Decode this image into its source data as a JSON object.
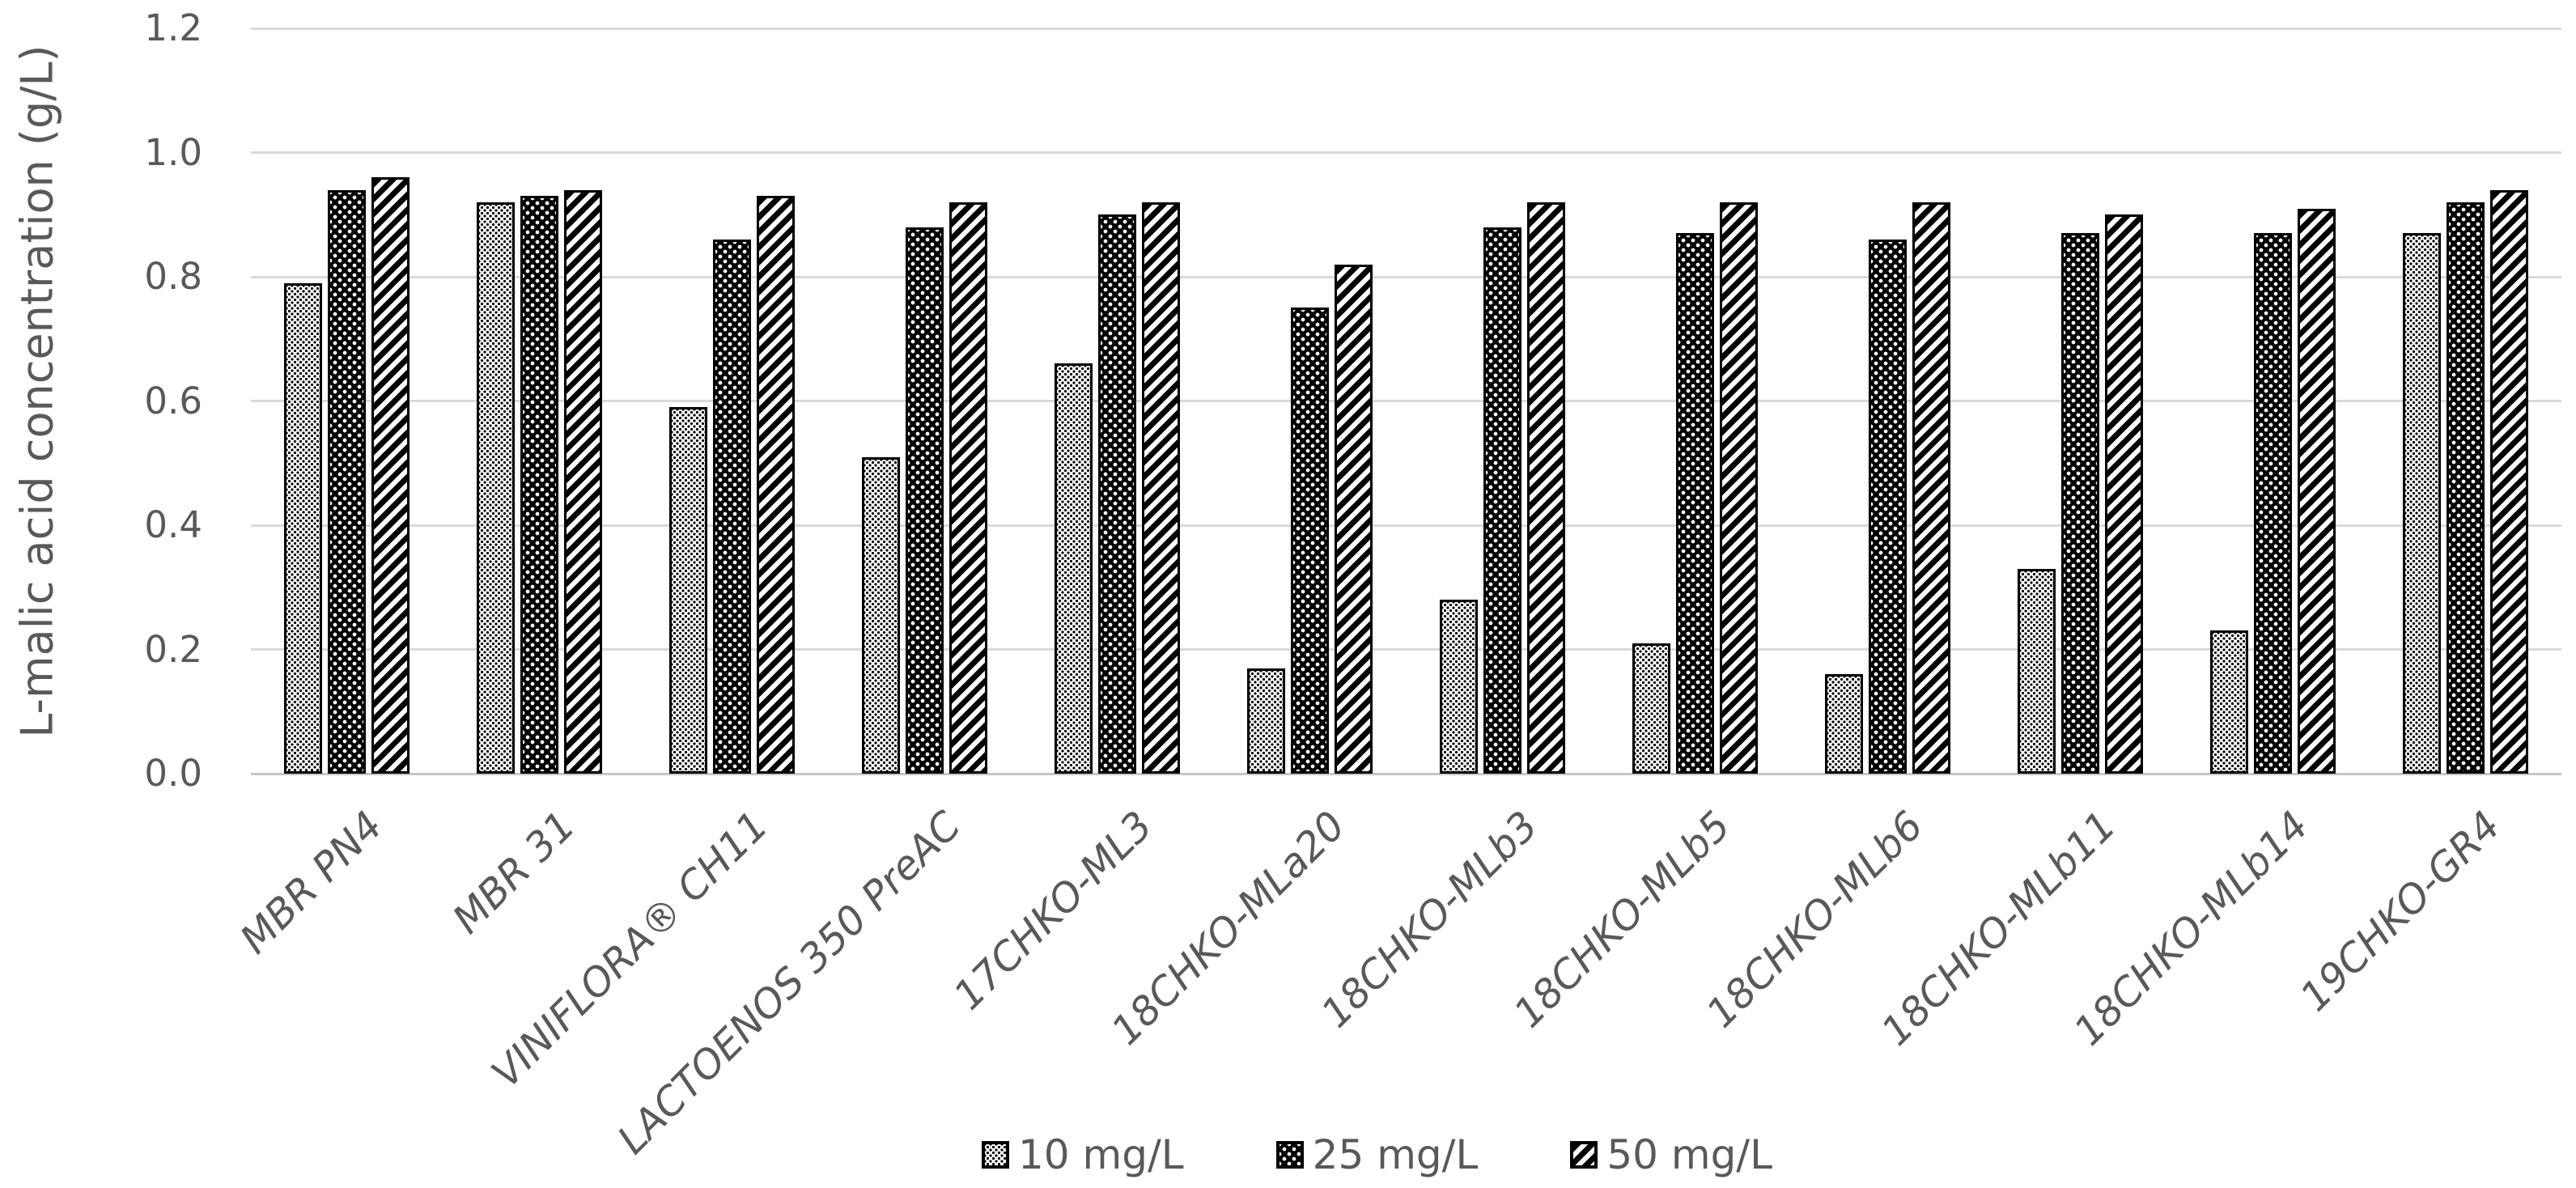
{
  "chart_data": {
    "type": "bar",
    "title": "",
    "xlabel": "",
    "ylabel": "L-malic acid concentration (g/L)",
    "ylim": [
      0,
      1.2
    ],
    "ytick_labels": [
      "0.0",
      "0.2",
      "0.4",
      "0.6",
      "0.8",
      "1.0",
      "1.2"
    ],
    "grid": true,
    "legend_position": "bottom",
    "categories": [
      "MBR PN4",
      "MBR 31",
      "VINIFLORA® CH11",
      "LACTOENOS 350 PreAC",
      "17CHKO-ML3",
      "18CHKO-MLa20",
      "18CHKO-MLb3",
      "18CHKO-MLb5",
      "18CHKO-MLb6",
      "18CHKO-MLb11",
      "18CHKO-MLb14",
      "19CHKO-GR4"
    ],
    "series": [
      {
        "name": "10 mg/L",
        "pattern": "dots-light",
        "values": [
          0.79,
          0.92,
          0.59,
          0.51,
          0.66,
          0.17,
          0.28,
          0.21,
          0.16,
          0.33,
          0.23,
          0.87
        ]
      },
      {
        "name": "25 mg/L",
        "pattern": "dots-dark",
        "values": [
          0.94,
          0.93,
          0.86,
          0.88,
          0.9,
          0.75,
          0.88,
          0.87,
          0.86,
          0.87,
          0.87,
          0.92
        ]
      },
      {
        "name": "50 mg/L",
        "pattern": "stripes",
        "values": [
          0.96,
          0.94,
          0.93,
          0.92,
          0.92,
          0.82,
          0.92,
          0.92,
          0.92,
          0.9,
          0.91,
          0.94
        ]
      }
    ],
    "colors": {
      "text": "#595959",
      "gridline": "#D9D9D9",
      "bar_border": "#000000",
      "background": "#FFFFFF",
      "series_fills": [
        "white-with-black-dots",
        "black-with-white-dots",
        "black-white-diagonal-stripes"
      ]
    }
  }
}
